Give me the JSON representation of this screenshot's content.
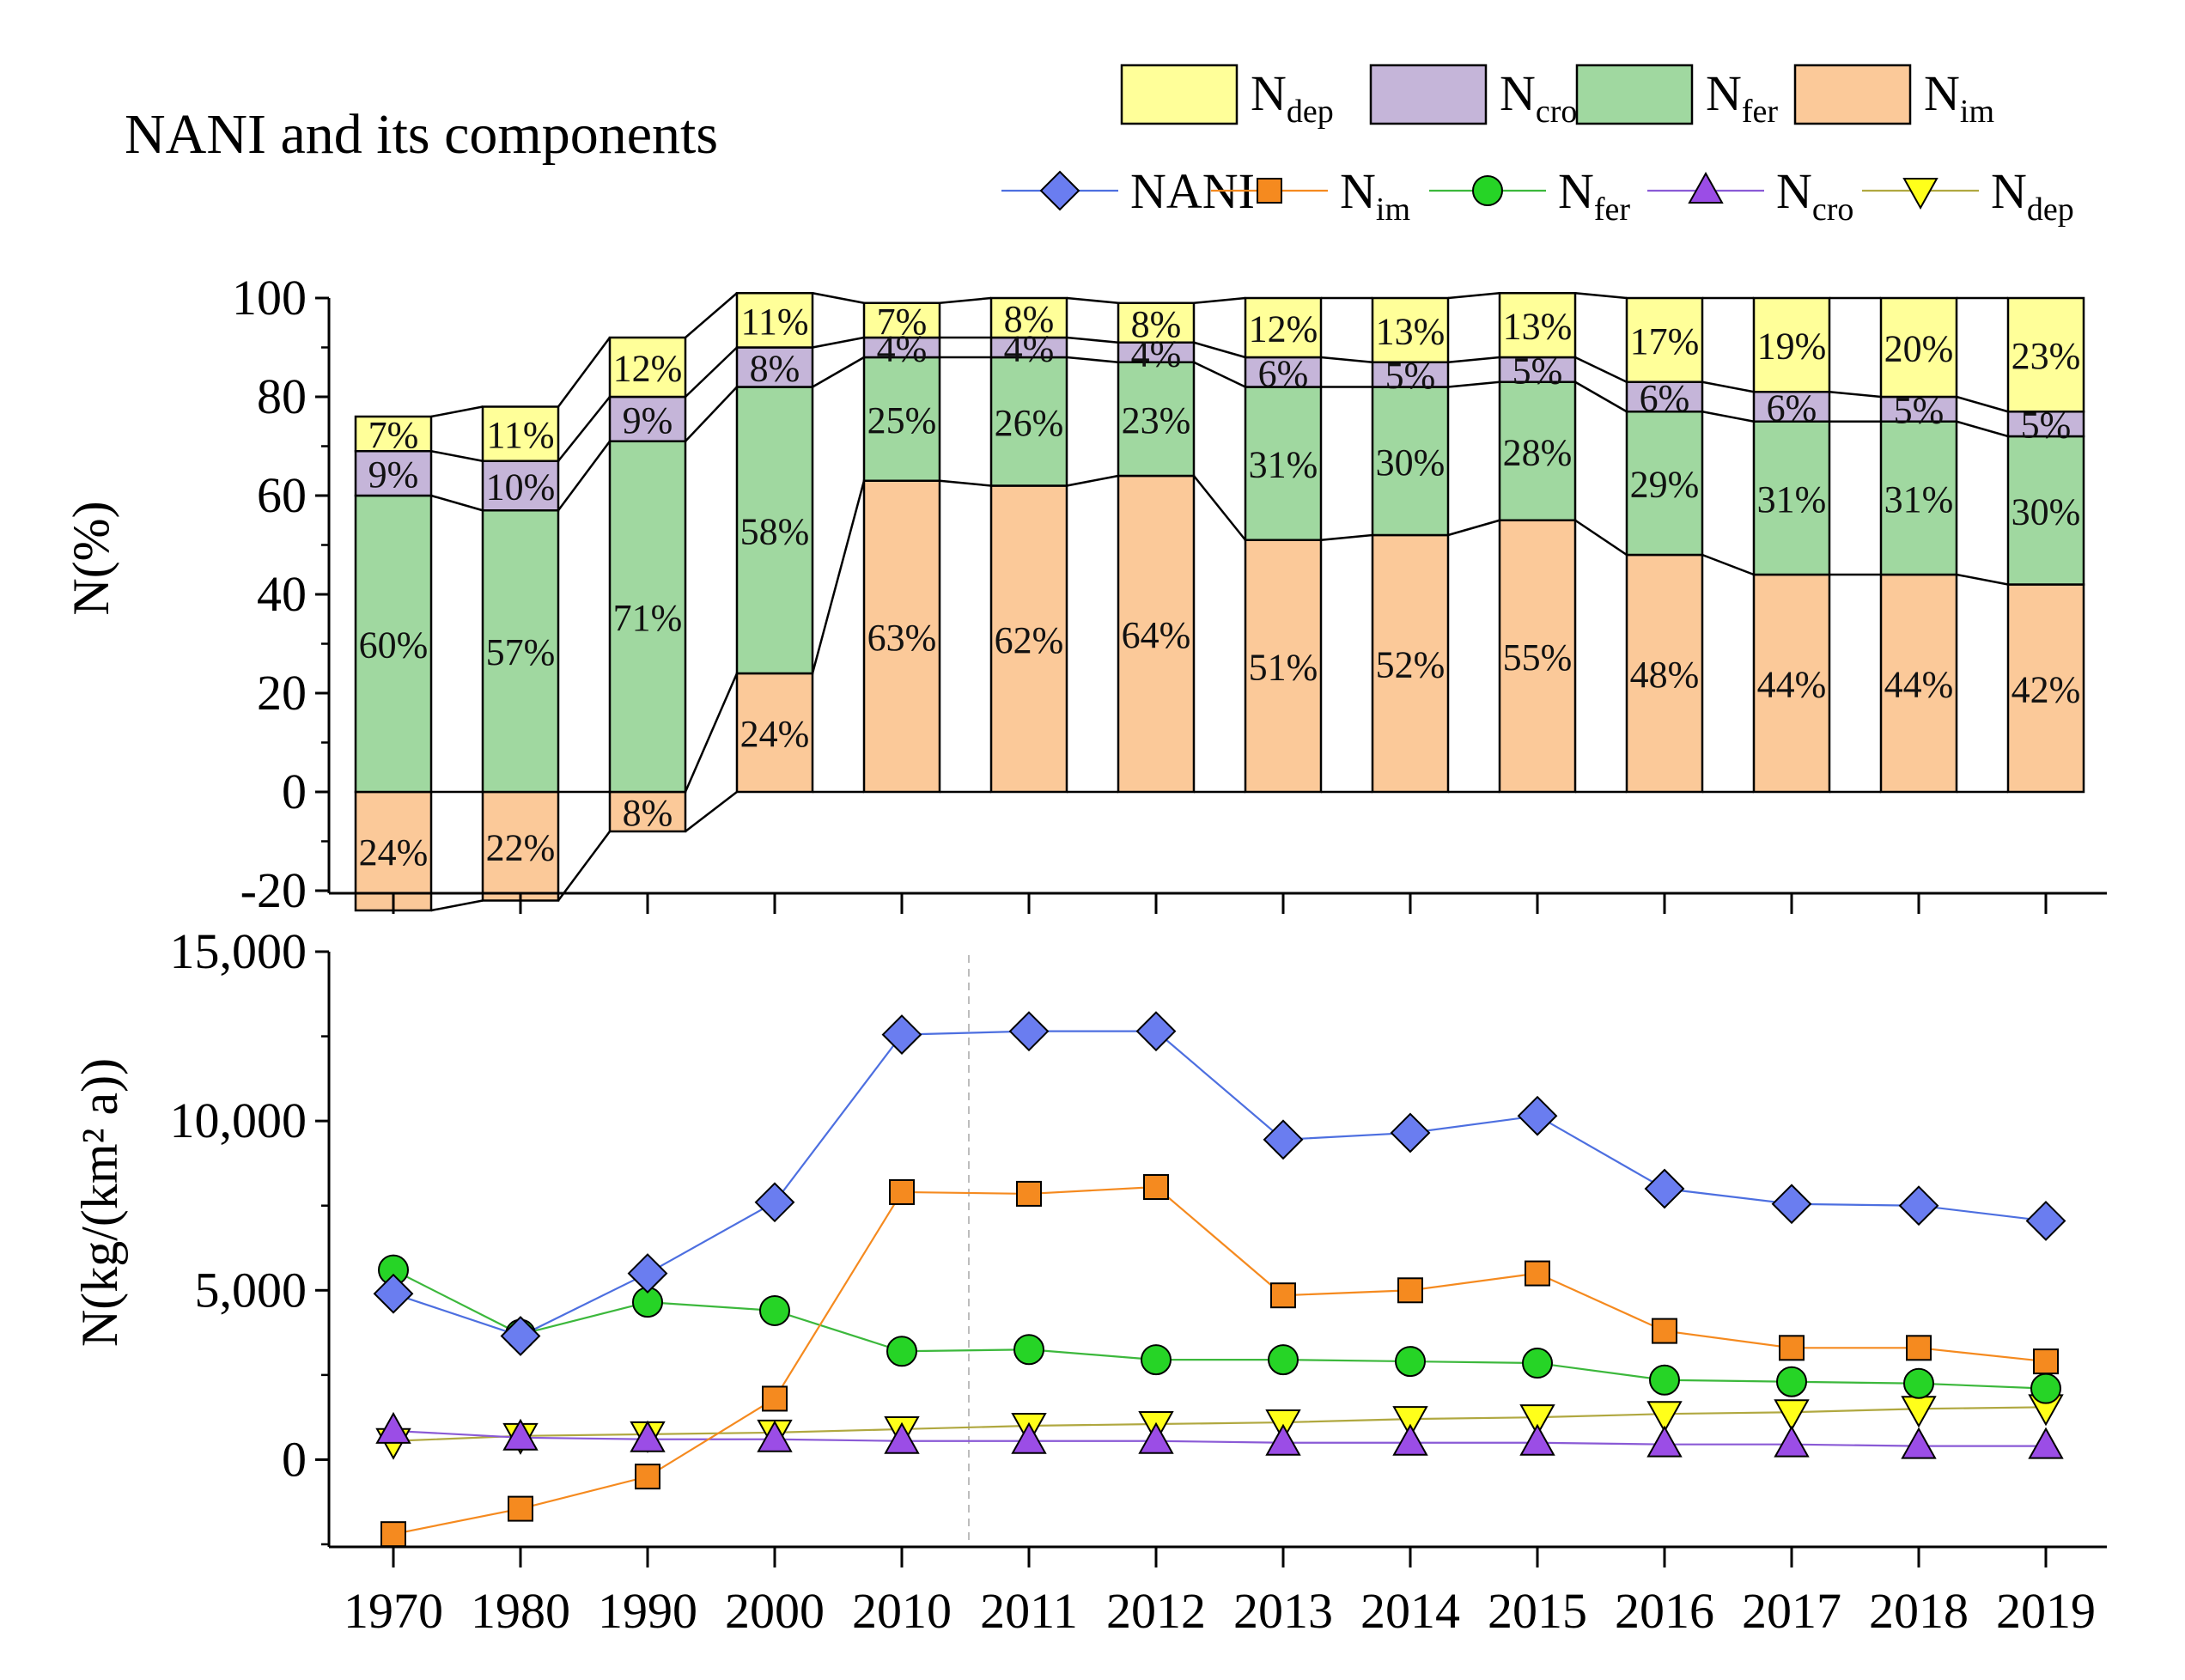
{
  "title": "NANI and its components",
  "categories": [
    "1970",
    "1980",
    "1990",
    "2000",
    "2010",
    "2011",
    "2012",
    "2013",
    "2014",
    "2015",
    "2016",
    "2017",
    "2018",
    "2019"
  ],
  "legend_bar": [
    {
      "key": "dep",
      "main": "N",
      "sub": "dep"
    },
    {
      "key": "cro",
      "main": "N",
      "sub": "cro"
    },
    {
      "key": "fer",
      "main": "N",
      "sub": "fer"
    },
    {
      "key": "im",
      "main": "N",
      "sub": "im"
    }
  ],
  "legend_line": [
    {
      "key": "NANI",
      "main": "NANI",
      "sub": ""
    },
    {
      "key": "im",
      "main": "N",
      "sub": "im"
    },
    {
      "key": "fer",
      "main": "N",
      "sub": "fer"
    },
    {
      "key": "cro",
      "main": "N",
      "sub": "cro"
    },
    {
      "key": "dep",
      "main": "N",
      "sub": "dep"
    }
  ],
  "colors": {
    "bar_dep": "#ffff99",
    "bar_cro": "#c5b5d9",
    "bar_fer": "#a0d8a0",
    "bar_im": "#fbc999",
    "line_NANI": "#6a7df0",
    "line_im": "#f58a1f",
    "line_fer": "#26d426",
    "line_cro": "#9b4de6",
    "line_dep": "#ffff1a",
    "stroke_NANI": "#4d6fe0",
    "stroke_im": "#f58a1f",
    "stroke_fer": "#3cb83c",
    "stroke_cro": "#8a5ad6",
    "stroke_dep": "#b0a840"
  },
  "chart_data": [
    {
      "type": "bar",
      "stacked": true,
      "ylabel": "N(%)",
      "ylim": [
        -20,
        100
      ],
      "yticks": [
        "-20",
        "0",
        "20",
        "40",
        "60",
        "80",
        "100"
      ],
      "series": [
        {
          "name": "N_im",
          "values": [
            -24,
            -22,
            -8,
            24,
            63,
            62,
            64,
            51,
            52,
            55,
            48,
            44,
            44,
            42
          ],
          "labels": [
            "24%",
            "22%",
            "8%",
            "24%",
            "63%",
            "62%",
            "64%",
            "51%",
            "52%",
            "55%",
            "48%",
            "44%",
            "44%",
            "42%"
          ]
        },
        {
          "name": "N_fer",
          "values": [
            60,
            57,
            71,
            58,
            25,
            26,
            23,
            31,
            30,
            28,
            29,
            31,
            31,
            30
          ],
          "labels": [
            "60%",
            "57%",
            "71%",
            "58%",
            "25%",
            "26%",
            "23%",
            "31%",
            "30%",
            "28%",
            "29%",
            "31%",
            "31%",
            "30%"
          ]
        },
        {
          "name": "N_cro",
          "values": [
            9,
            10,
            9,
            8,
            4,
            4,
            4,
            6,
            5,
            5,
            6,
            6,
            5,
            5
          ],
          "labels": [
            "9%",
            "10%",
            "9%",
            "8%",
            "4%",
            "4%",
            "4%",
            "6%",
            "5%",
            "5%",
            "6%",
            "6%",
            "5%",
            "5%"
          ]
        },
        {
          "name": "N_dep",
          "values": [
            7,
            11,
            12,
            11,
            7,
            8,
            8,
            12,
            13,
            13,
            17,
            19,
            20,
            23
          ],
          "labels": [
            "7%",
            "11%",
            "12%",
            "11%",
            "7%",
            "8%",
            "8%",
            "12%",
            "13%",
            "13%",
            "17%",
            "19%",
            "20%",
            "23%"
          ]
        }
      ]
    },
    {
      "type": "line",
      "ylabel": "N(kg/(km² a))",
      "ylim": [
        -2500,
        15000
      ],
      "yticks": [
        "0",
        "5,000",
        "10,000",
        "15,000"
      ],
      "series": [
        {
          "name": "NANI",
          "values": [
            4900,
            3650,
            5500,
            7600,
            12550,
            12650,
            12650,
            9450,
            9650,
            10150,
            8000,
            7550,
            7500,
            7050
          ]
        },
        {
          "name": "N_im",
          "values": [
            -2200,
            -1450,
            -500,
            1800,
            7900,
            7850,
            8050,
            4850,
            5000,
            5500,
            3800,
            3300,
            3300,
            2900
          ]
        },
        {
          "name": "N_fer",
          "values": [
            5600,
            3700,
            4650,
            4400,
            3200,
            3250,
            2950,
            2950,
            2900,
            2850,
            2350,
            2300,
            2250,
            2100
          ]
        },
        {
          "name": "N_cro",
          "values": [
            850,
            650,
            600,
            600,
            550,
            550,
            550,
            500,
            500,
            500,
            450,
            450,
            400,
            400
          ]
        },
        {
          "name": "N_dep",
          "values": [
            550,
            700,
            750,
            800,
            900,
            1000,
            1050,
            1100,
            1200,
            1250,
            1350,
            1400,
            1500,
            1550
          ]
        }
      ]
    }
  ]
}
